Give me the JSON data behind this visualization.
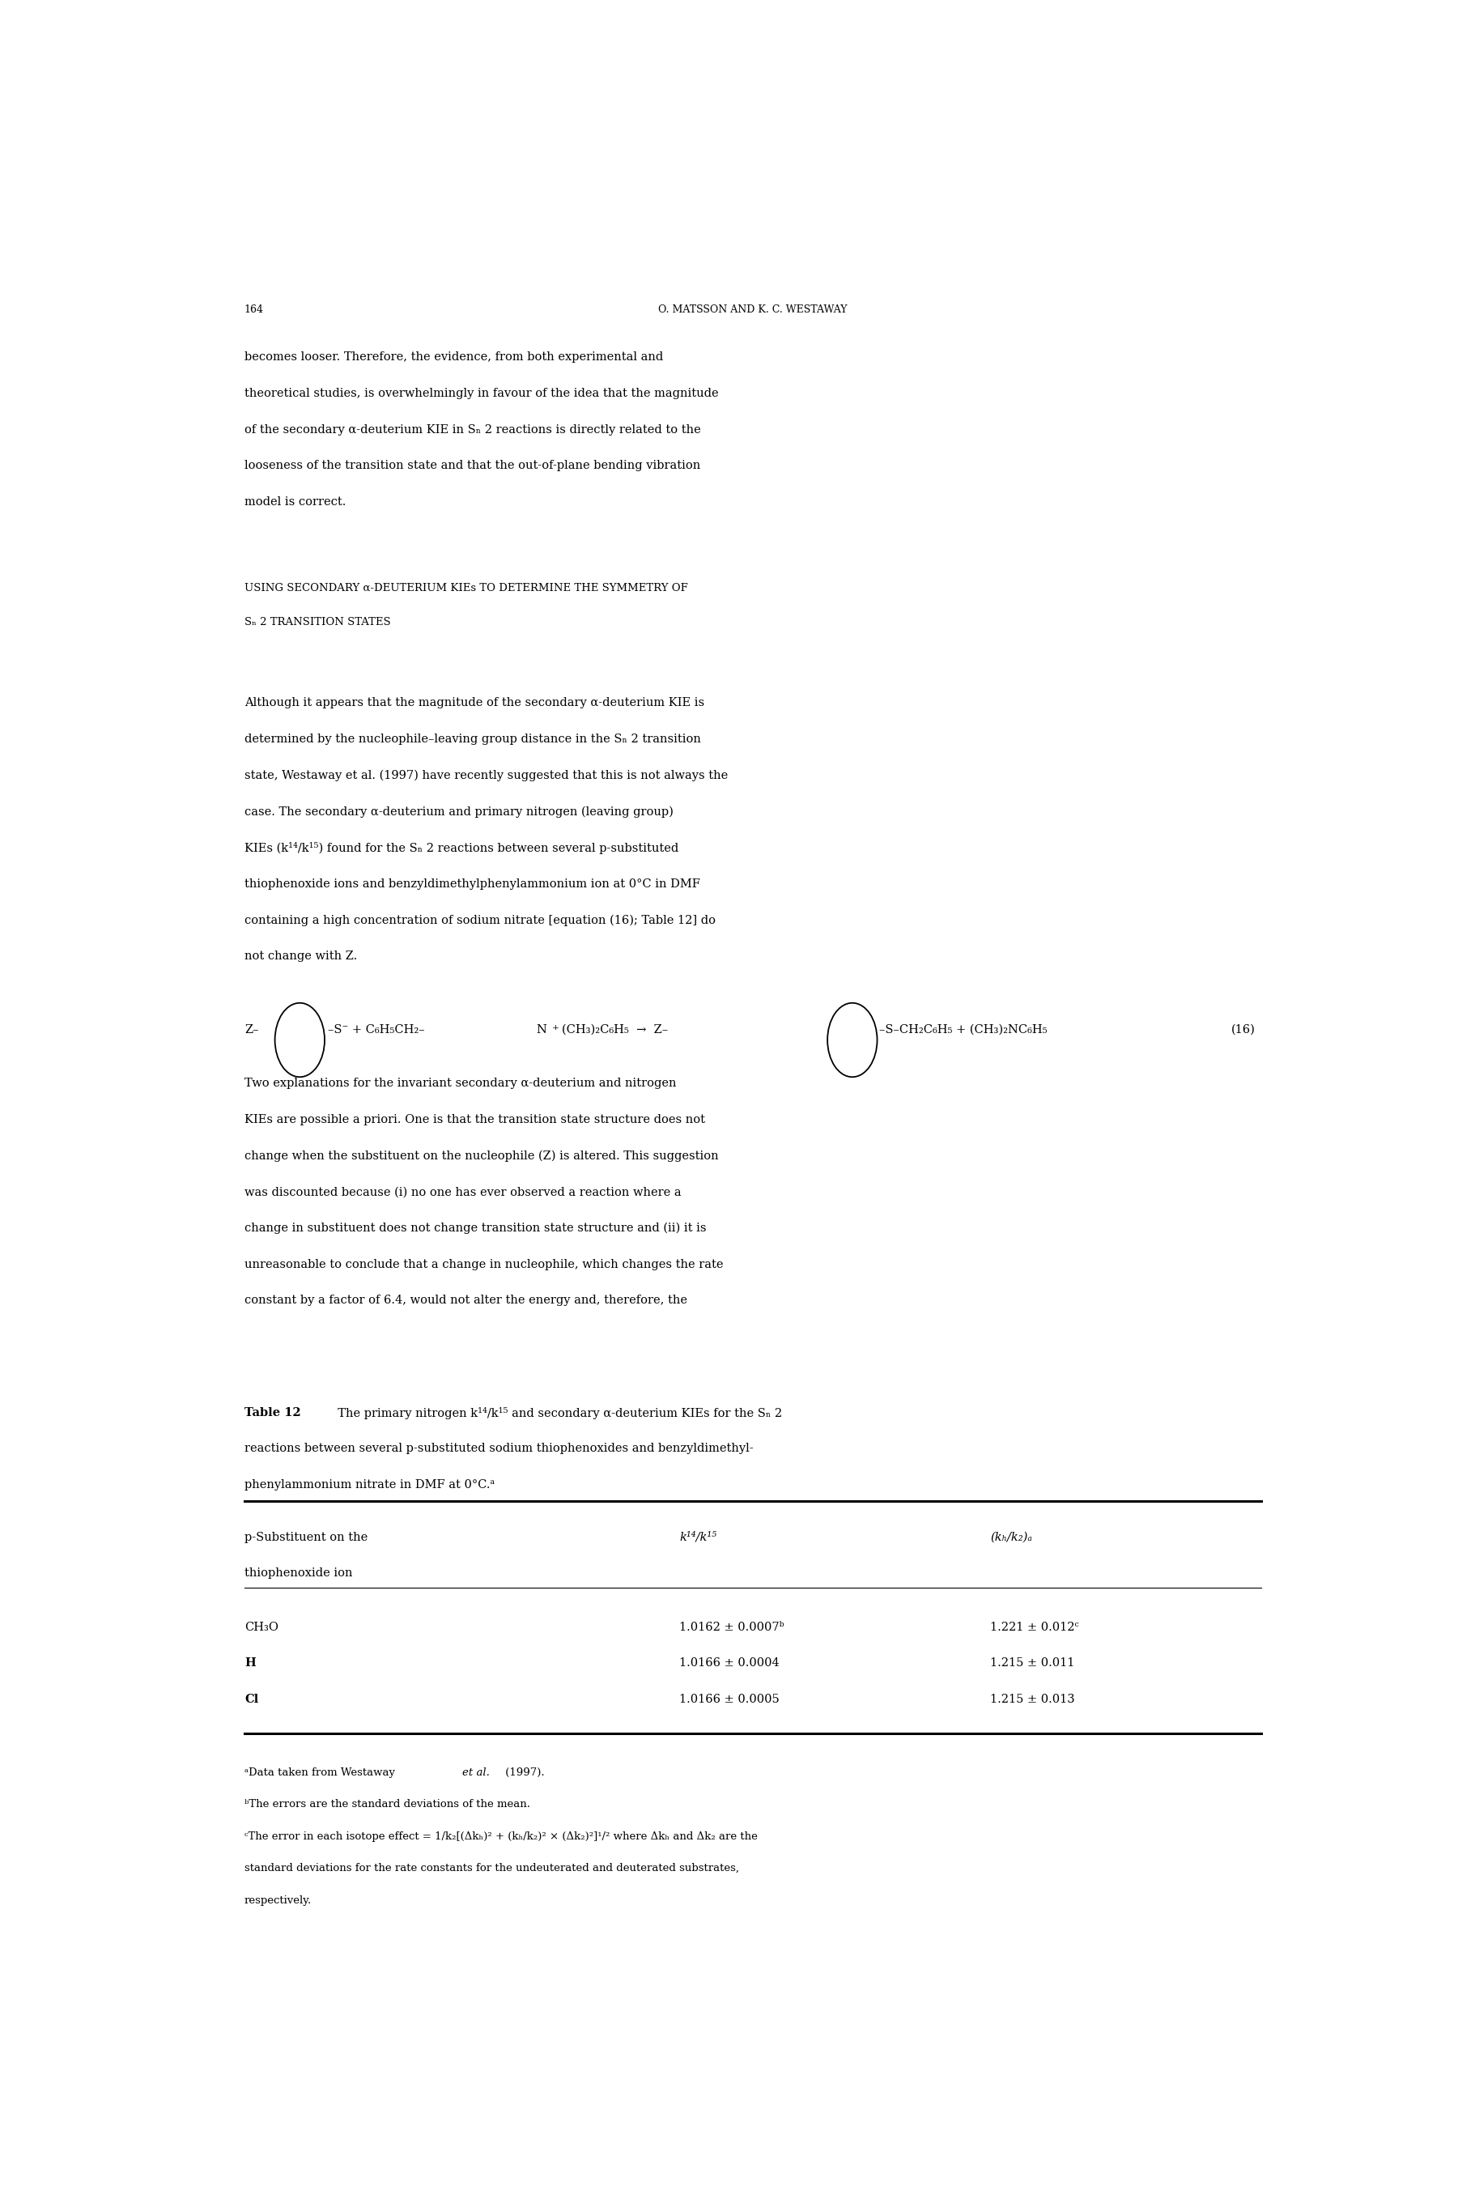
{
  "page_number": "164",
  "header_right": "O. MATSSON AND K. C. WESTAWAY",
  "para1_lines": [
    "becomes looser. Therefore, the evidence, from both experimental and",
    "theoretical studies, is overwhelmingly in favour of the idea that the magnitude",
    "of the secondary α-deuterium KIE in Sₙ 2 reactions is directly related to the",
    "looseness of the transition state and that the out-of-plane bending vibration",
    "model is correct."
  ],
  "heading_lines": [
    "USING SECONDARY α-DEUTERIUM KIEs TO DETERMINE THE SYMMETRY OF",
    "Sₙ 2 TRANSITION STATES"
  ],
  "para2_lines": [
    "Although it appears that the magnitude of the secondary α-deuterium KIE is",
    "determined by the nucleophile–leaving group distance in the Sₙ 2 transition",
    "state, Westaway et al. (1997) have recently suggested that this is not always the",
    "case. The secondary α-deuterium and primary nitrogen (leaving group)",
    "KIEs (k¹⁴/k¹⁵) found for the Sₙ 2 reactions between several p-substituted",
    "thiophenoxide ions and benzyldimethylphenylammonium ion at 0°C in DMF",
    "containing a high concentration of sodium nitrate [equation (16); Table 12] do",
    "not change with Z."
  ],
  "para3_lines": [
    "Two explanations for the invariant secondary α-deuterium and nitrogen",
    "KIEs are possible a priori. One is that the transition state structure does not",
    "change when the substituent on the nucleophile (Z) is altered. This suggestion",
    "was discounted because (i) no one has ever observed a reaction where a",
    "change in substituent does not change transition state structure and (ii) it is",
    "unreasonable to conclude that a change in nucleophile, which changes the rate",
    "constant by a factor of 6.4, would not alter the energy and, therefore, the"
  ],
  "table_caption_bold": "Table 12",
  "table_caption_rest_line1": "  The primary nitrogen k¹⁴/k¹⁵ and secondary α-deuterium KIEs for the Sₙ 2",
  "table_caption_line2": "reactions between several p-substituted sodium thiophenoxides and benzyldimethyl-",
  "table_caption_line3": "phenylammonium nitrate in DMF at 0°C.ᵃ",
  "col_header1_line1": "p-Substituent on the",
  "col_header1_line2": "thiophenoxide ion",
  "col_header2": "k¹⁴/k¹⁵",
  "col_header3": "(kₕ/k₂)ₐ",
  "table_rows": [
    [
      "CH₃O",
      "1.0162 ± 0.0007ᵇ",
      "1.221 ± 0.012ᶜ"
    ],
    [
      "H",
      "1.0166 ± 0.0004",
      "1.215 ± 0.011"
    ],
    [
      "Cl",
      "1.0166 ± 0.0005",
      "1.215 ± 0.013"
    ]
  ],
  "footnote_a": "ᵃData taken from Westaway et al. (1997).",
  "footnote_a_italic": "et al.",
  "footnote_b": "ᵇThe errors are the standard deviations of the mean.",
  "footnote_c_line1": "ᶜThe error in each isotope effect = 1/k₂[(Δkₕ)² + (kₕ/k₂)² × (Δk₂)²]¹/² where Δkₕ and Δk₂ are the",
  "footnote_c_line2": "standard deviations for the rate constants for the undeuterated and deuterated substrates,",
  "footnote_c_line3": "respectively.",
  "background_color": "#ffffff",
  "text_color": "#000000"
}
